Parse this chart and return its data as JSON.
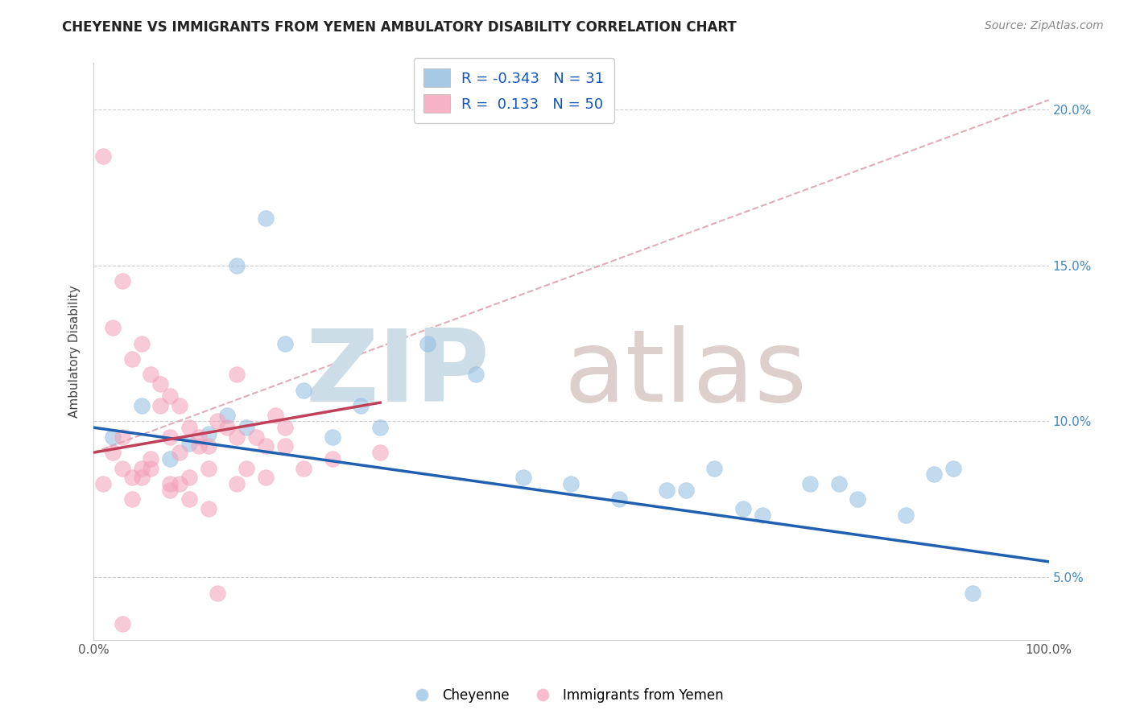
{
  "title": "CHEYENNE VS IMMIGRANTS FROM YEMEN AMBULATORY DISABILITY CORRELATION CHART",
  "source": "Source: ZipAtlas.com",
  "ylabel": "Ambulatory Disability",
  "xlim": [
    0,
    100
  ],
  "ylim": [
    3.0,
    21.5
  ],
  "ytick_vals": [
    5,
    10,
    15,
    20
  ],
  "ytick_labels": [
    "5.0%",
    "10.0%",
    "15.0%",
    "20.0%"
  ],
  "xtick_vals": [
    0,
    20,
    40,
    60,
    80,
    100
  ],
  "xtick_labels": [
    "0.0%",
    "",
    "",
    "",
    "",
    "100.0%"
  ],
  "blue_color": "#90bce0",
  "pink_color": "#f4a0b8",
  "line_blue_color": "#2060b0",
  "line_pink_color": "#c0405a",
  "dashed_line_color": "#d08090",
  "grid_color": "#cccccc",
  "title_color": "#222222",
  "source_color": "#888888",
  "blue_label": "Cheyenne",
  "pink_label": "Immigrants from Yemen",
  "legend_r1": "-0.343",
  "legend_n1": "31",
  "legend_r2": "0.133",
  "legend_n2": "50",
  "blue_x": [
    2,
    5,
    8,
    10,
    12,
    14,
    16,
    18,
    20,
    22,
    25,
    28,
    30,
    35,
    40,
    45,
    50,
    55,
    60,
    65,
    70,
    75,
    80,
    85,
    88,
    90,
    62,
    68,
    78,
    92,
    15
  ],
  "blue_y": [
    9.5,
    10.5,
    8.8,
    9.3,
    9.6,
    10.2,
    9.8,
    16.5,
    12.5,
    11.0,
    9.5,
    10.5,
    9.8,
    12.5,
    11.5,
    8.2,
    8.0,
    7.5,
    7.8,
    8.5,
    7.0,
    8.0,
    7.5,
    7.0,
    8.3,
    8.5,
    7.8,
    7.2,
    8.0,
    4.5,
    15.0
  ],
  "pink_x": [
    1,
    2,
    3,
    4,
    5,
    6,
    7,
    8,
    9,
    10,
    11,
    12,
    13,
    14,
    15,
    16,
    17,
    18,
    19,
    20,
    3,
    5,
    7,
    9,
    11,
    13,
    4,
    8,
    12,
    18,
    2,
    4,
    6,
    8,
    10,
    3,
    6,
    9,
    12,
    15,
    20,
    25,
    30,
    1,
    8,
    3,
    10,
    5,
    15,
    22
  ],
  "pink_y": [
    18.5,
    13.0,
    14.5,
    12.0,
    12.5,
    11.5,
    11.2,
    10.8,
    10.5,
    9.8,
    9.5,
    9.2,
    10.0,
    9.8,
    11.5,
    8.5,
    9.5,
    9.2,
    10.2,
    9.8,
    9.5,
    8.5,
    10.5,
    8.0,
    9.2,
    4.5,
    8.2,
    8.0,
    8.5,
    8.2,
    9.0,
    7.5,
    8.8,
    9.5,
    8.2,
    3.5,
    8.5,
    9.0,
    7.2,
    9.5,
    9.2,
    8.8,
    9.0,
    8.0,
    7.8,
    8.5,
    7.5,
    8.2,
    8.0,
    8.5
  ],
  "blue_trend_x0": 0,
  "blue_trend_y0": 9.8,
  "blue_trend_x1": 100,
  "blue_trend_y1": 5.5,
  "pink_trend_x0": 0,
  "pink_trend_y0": 9.0,
  "pink_trend_x1": 30,
  "pink_trend_y1": 10.6,
  "dashed_x0": 0,
  "dashed_y0": 9.0,
  "dashed_x1": 100,
  "dashed_y1": 20.3,
  "watermark_zip": "ZIP",
  "watermark_atlas": "atlas",
  "zip_color": "#ccdde8",
  "atlas_color": "#ddd0cc",
  "background": "#ffffff"
}
